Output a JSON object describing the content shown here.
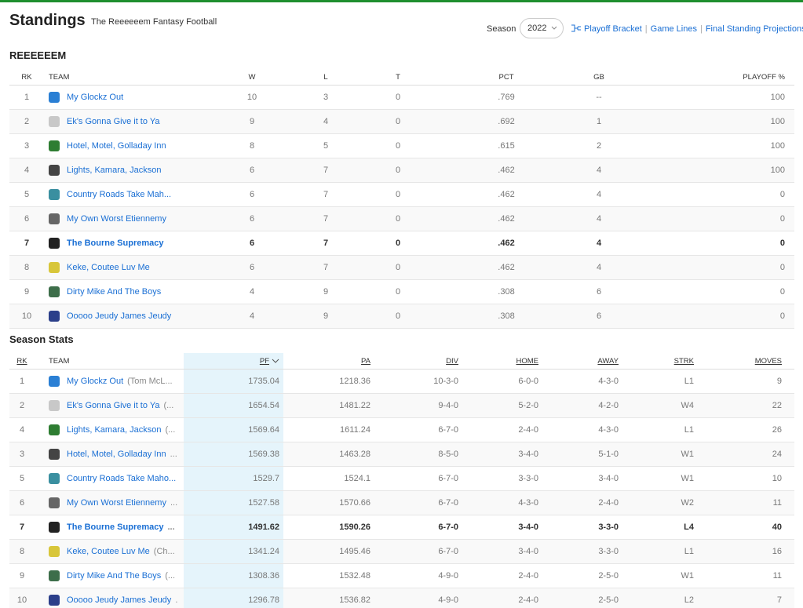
{
  "header": {
    "title": "Standings",
    "subtitle": "The Reeeeeem Fantasy Football",
    "season_label": "Season",
    "season_value": "2022",
    "links": [
      "Playoff Bracket",
      "Game Lines",
      "Final Standing Projections"
    ]
  },
  "standings": {
    "title": "REEEEEEM",
    "columns": [
      "RK",
      "TEAM",
      "W",
      "L",
      "T",
      "PCT",
      "GB",
      "PLAYOFF %"
    ],
    "rows": [
      [
        "1",
        "My Glockz Out",
        "10",
        "3",
        "0",
        ".769",
        "--",
        "100"
      ],
      [
        "2",
        "Ek's Gonna Give it to Ya",
        "9",
        "4",
        "0",
        ".692",
        "1",
        "100"
      ],
      [
        "3",
        "Hotel, Motel, Golladay Inn",
        "8",
        "5",
        "0",
        ".615",
        "2",
        "100"
      ],
      [
        "4",
        "Lights, Kamara, Jackson",
        "6",
        "7",
        "0",
        ".462",
        "4",
        "100"
      ],
      [
        "5",
        "Country Roads Take Mah...",
        "6",
        "7",
        "0",
        ".462",
        "4",
        "0"
      ],
      [
        "6",
        "My Own Worst Etiennemy",
        "6",
        "7",
        "0",
        ".462",
        "4",
        "0"
      ],
      [
        "7",
        "The Bourne Supremacy",
        "6",
        "7",
        "0",
        ".462",
        "4",
        "0"
      ],
      [
        "8",
        "Keke, Coutee Luv Me",
        "6",
        "7",
        "0",
        ".462",
        "4",
        "0"
      ],
      [
        "9",
        "Dirty Mike And The Boys",
        "4",
        "9",
        "0",
        ".308",
        "6",
        "0"
      ],
      [
        "10",
        "Ooooo Jeudy James Jeudy",
        "4",
        "9",
        "0",
        ".308",
        "6",
        "0"
      ]
    ]
  },
  "stats": {
    "title": "Season Stats",
    "columns": [
      "RK",
      "TEAM",
      "PF",
      "PA",
      "DIV",
      "HOME",
      "AWAY",
      "STRK",
      "MOVES"
    ],
    "rows": [
      {
        "rk": "1",
        "team": "My Glockz Out",
        "owner": "(Tom McL...",
        "pf": "1735.04",
        "pa": "1218.36",
        "div": "10-3-0",
        "home": "6-0-0",
        "away": "4-3-0",
        "strk": "L1",
        "moves": "9"
      },
      {
        "rk": "2",
        "team": "Ek's Gonna Give it to Ya",
        "owner": "(...",
        "pf": "1654.54",
        "pa": "1481.22",
        "div": "9-4-0",
        "home": "5-2-0",
        "away": "4-2-0",
        "strk": "W4",
        "moves": "22"
      },
      {
        "rk": "4",
        "team": "Lights, Kamara, Jackson",
        "owner": "(...",
        "pf": "1569.64",
        "pa": "1611.24",
        "div": "6-7-0",
        "home": "2-4-0",
        "away": "4-3-0",
        "strk": "L1",
        "moves": "26"
      },
      {
        "rk": "3",
        "team": "Hotel, Motel, Golladay Inn",
        "owner": "...",
        "pf": "1569.38",
        "pa": "1463.28",
        "div": "8-5-0",
        "home": "3-4-0",
        "away": "5-1-0",
        "strk": "W1",
        "moves": "24"
      },
      {
        "rk": "5",
        "team": "Country Roads Take Maho...",
        "pf": "1529.7",
        "pa": "1524.1",
        "div": "6-7-0",
        "home": "3-3-0",
        "away": "3-4-0",
        "strk": "W1",
        "moves": "10"
      },
      {
        "rk": "6",
        "team": "My Own Worst Etiennemy",
        "owner": "...",
        "pf": "1527.58",
        "pa": "1570.66",
        "div": "6-7-0",
        "home": "4-3-0",
        "away": "2-4-0",
        "strk": "W2",
        "moves": "11"
      },
      {
        "rk": "7",
        "team": "The Bourne Supremacy",
        "owner": "...",
        "pf": "1491.62",
        "pa": "1590.26",
        "div": "6-7-0",
        "home": "3-4-0",
        "away": "3-3-0",
        "strk": "L4",
        "moves": "40"
      },
      {
        "rk": "8",
        "team": "Keke, Coutee Luv Me",
        "owner": "(Ch...",
        "pf": "1341.24",
        "pa": "1495.46",
        "div": "6-7-0",
        "home": "3-4-0",
        "away": "3-3-0",
        "strk": "L1",
        "moves": "16"
      },
      {
        "rk": "9",
        "team": "Dirty Mike And The Boys",
        "owner": "(...",
        "pf": "1308.36",
        "pa": "1532.48",
        "div": "4-9-0",
        "home": "2-4-0",
        "away": "2-5-0",
        "strk": "W1",
        "moves": "11"
      },
      {
        "rk": "10",
        "team": "Ooooo Jeudy James Jeudy",
        "owner": ".",
        "pf": "1296.78",
        "pa": "1536.82",
        "div": "4-9-0",
        "home": "2-4-0",
        "away": "2-5-0",
        "strk": "L2",
        "moves": "7"
      }
    ]
  }
}
